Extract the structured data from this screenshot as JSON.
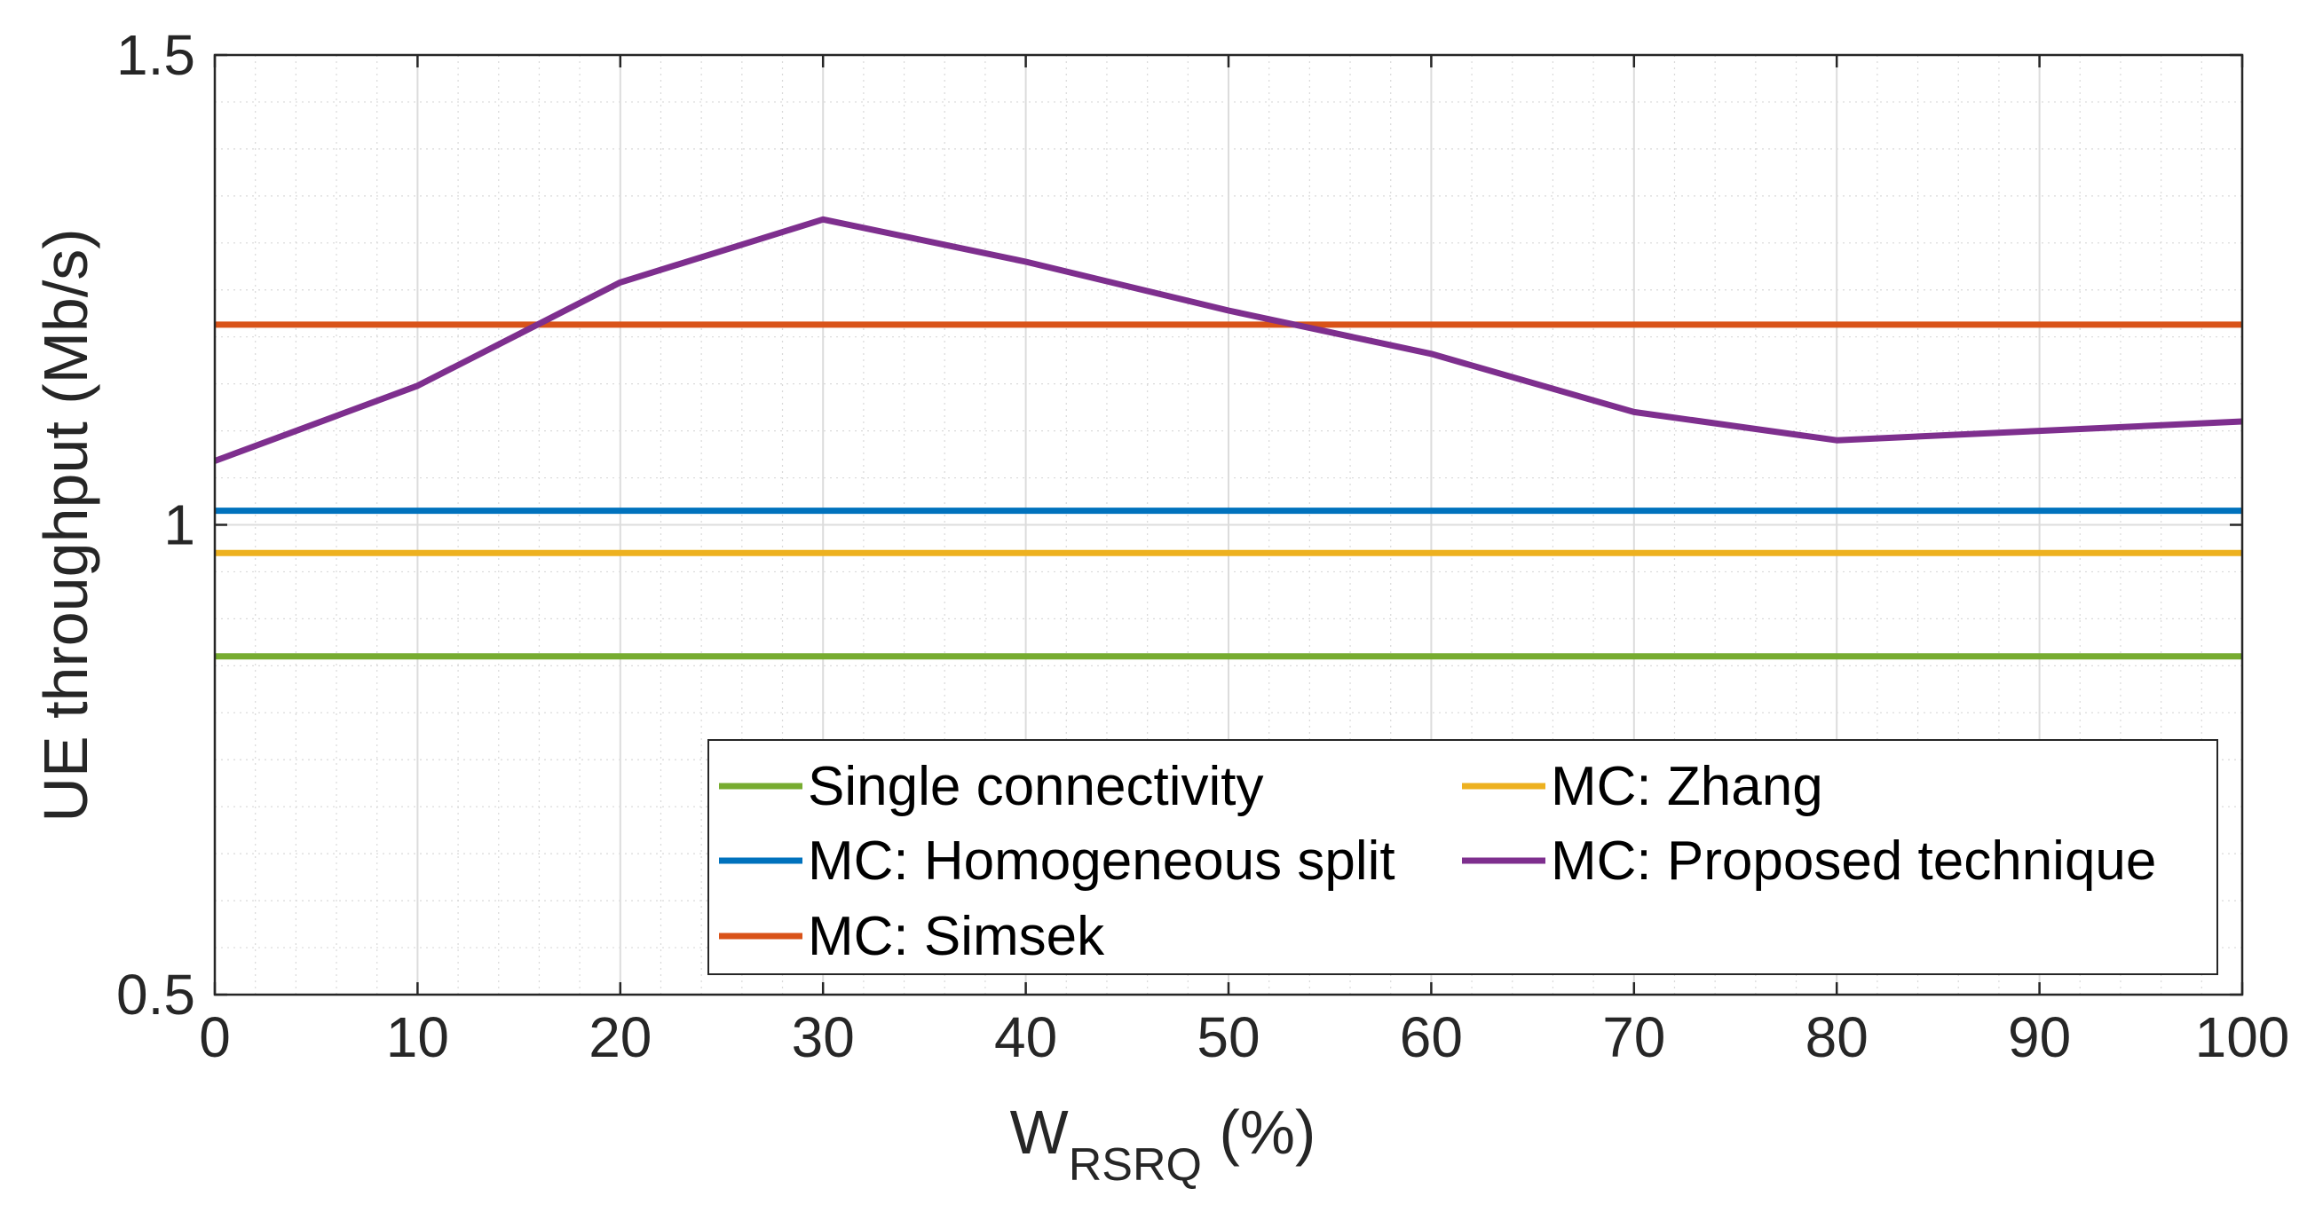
{
  "chart_data": {
    "type": "line",
    "title": "",
    "xlabel": {
      "main": "W",
      "subscript": "RSRQ",
      "suffix": " (%)"
    },
    "ylabel": "UE throughput (Mb/s)",
    "xlim": [
      0,
      100
    ],
    "ylim": [
      0.5,
      1.5
    ],
    "xticks": [
      0,
      10,
      20,
      30,
      40,
      50,
      60,
      70,
      80,
      90,
      100
    ],
    "xtick_labels": [
      "0",
      "10",
      "20",
      "30",
      "40",
      "50",
      "60",
      "70",
      "80",
      "90",
      "100"
    ],
    "yticks": [
      0.5,
      1.0,
      1.5
    ],
    "ytick_labels": [
      "0.5",
      "1",
      "1.5"
    ],
    "grid": true,
    "minor_grid": true,
    "legend_position": "bottom-right",
    "x": [
      0,
      10,
      20,
      30,
      40,
      50,
      60,
      70,
      80,
      90,
      100
    ],
    "series": [
      {
        "name": "Single connectivity",
        "color": "#77AC30",
        "values": [
          0.86,
          0.86,
          0.86,
          0.86,
          0.86,
          0.86,
          0.86,
          0.86,
          0.86,
          0.86,
          0.86
        ]
      },
      {
        "name": "MC: Homogeneous split",
        "color": "#0072BD",
        "values": [
          1.015,
          1.015,
          1.015,
          1.015,
          1.015,
          1.015,
          1.015,
          1.015,
          1.015,
          1.015,
          1.015
        ]
      },
      {
        "name": "MC: Simsek",
        "color": "#D95319",
        "values": [
          1.213,
          1.213,
          1.213,
          1.213,
          1.213,
          1.213,
          1.213,
          1.213,
          1.213,
          1.213,
          1.213
        ]
      },
      {
        "name": "MC: Zhang",
        "color": "#EDB120",
        "values": [
          0.97,
          0.97,
          0.97,
          0.97,
          0.97,
          0.97,
          0.97,
          0.97,
          0.97,
          0.97,
          0.97
        ]
      },
      {
        "name": "MC: Proposed technique",
        "color": "#7E2F8E",
        "values": [
          1.068,
          1.148,
          1.258,
          1.325,
          1.28,
          1.228,
          1.182,
          1.12,
          1.09,
          1.1,
          1.11
        ]
      }
    ]
  }
}
